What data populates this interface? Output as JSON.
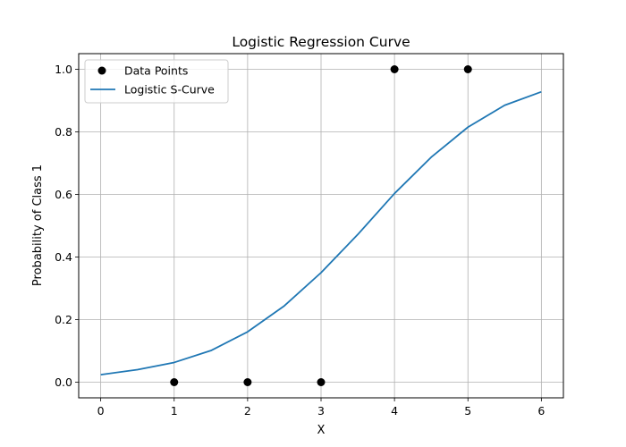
{
  "chart_data": {
    "type": "line",
    "title": "Logistic Regression Curve",
    "xlabel": "X",
    "ylabel": "Probability of Class 1",
    "xlim": [
      -0.3,
      6.3
    ],
    "ylim": [
      -0.05,
      1.05
    ],
    "xticks": [
      0,
      1,
      2,
      3,
      4,
      5,
      6
    ],
    "yticks": [
      0.0,
      0.2,
      0.4,
      0.6,
      0.8,
      1.0
    ],
    "grid": true,
    "legend_position": "top-left",
    "series": [
      {
        "name": "Data Points",
        "type": "scatter",
        "color": "#000000",
        "x": [
          1,
          2,
          3,
          4,
          5
        ],
        "y": [
          0,
          0,
          0,
          1,
          1
        ]
      },
      {
        "name": "Logistic S-Curve",
        "type": "line",
        "color": "#1f77b4",
        "x": [
          0,
          0.5,
          1,
          1.5,
          2,
          2.5,
          3,
          3.5,
          4,
          4.5,
          5,
          5.5,
          6
        ],
        "y": [
          0.024,
          0.04,
          0.063,
          0.101,
          0.161,
          0.244,
          0.35,
          0.472,
          0.603,
          0.719,
          0.815,
          0.885,
          0.928
        ]
      }
    ]
  }
}
